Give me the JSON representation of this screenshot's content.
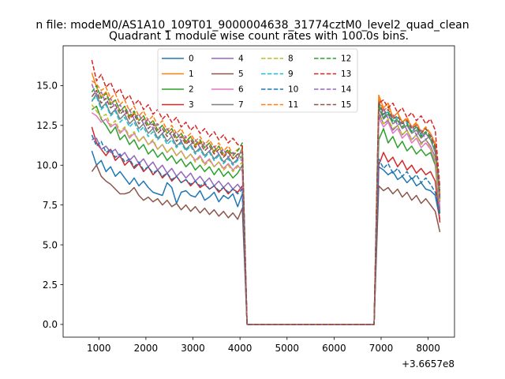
{
  "chart_data": {
    "type": "line",
    "suptitle": "n file: modeM0/AS1A10_109T01_9000004638_31774cztM0_level2_quad_clean",
    "title": "Quadrant 1 module wise count rates with 100.0s bins.",
    "xlabel": "",
    "ylabel": "",
    "offset_label": "+3.6657e8",
    "xlim": [
      240,
      8560
    ],
    "ylim": [
      -0.8,
      17.5
    ],
    "xticks": [
      1000,
      2000,
      3000,
      4000,
      5000,
      6000,
      7000,
      8000
    ],
    "yticks": [
      0.0,
      2.5,
      5.0,
      7.5,
      10.0,
      12.5,
      15.0
    ],
    "ytick_labels": [
      "0.0",
      "2.5",
      "5.0",
      "7.5",
      "10.0",
      "12.5",
      "15.0"
    ],
    "xtick_labels": [
      "1000",
      "2000",
      "3000",
      "4000",
      "5000",
      "6000",
      "7000",
      "8000"
    ],
    "legend": {
      "location": "upper-center",
      "columns": 4
    },
    "segments": {
      "seg1": {
        "x_start": 850,
        "x_end": 4050,
        "step": 100
      },
      "drop_x": [
        4150,
        6850
      ],
      "seg2": {
        "x_start": 6950,
        "x_end": 8250,
        "step": 100
      }
    },
    "series": [
      {
        "name": "0",
        "color": "#1f77b4",
        "dash": false,
        "seg1": [
          10.9,
          10.0,
          10.3,
          9.6,
          9.9,
          9.3,
          9.6,
          9.2,
          8.8,
          9.2,
          8.7,
          9.0,
          8.6,
          8.3,
          8.2,
          8.1,
          8.9,
          8.6,
          7.6,
          8.3,
          8.4,
          8.1,
          8.0,
          8.4,
          7.8,
          8.0,
          8.3,
          7.7,
          8.1,
          7.9,
          8.2,
          7.4,
          8.2
        ],
        "seg2": [
          9.9,
          9.7,
          9.4,
          9.6,
          9.1,
          9.3,
          8.9,
          9.2,
          8.7,
          8.9,
          8.5,
          8.4,
          8.1,
          6.6
        ]
      },
      {
        "name": "1",
        "color": "#ff7f0e",
        "dash": false,
        "seg1": [
          15.8,
          14.9,
          14.3,
          14.6,
          13.9,
          14.1,
          13.4,
          13.7,
          13.0,
          13.3,
          12.8,
          13.1,
          12.5,
          12.8,
          12.2,
          12.5,
          12.0,
          12.3,
          11.7,
          12.0,
          11.4,
          11.8,
          11.2,
          11.5,
          11.1,
          11.4,
          10.8,
          11.2,
          10.6,
          10.9,
          10.4,
          10.7,
          10.4
        ],
        "seg2": [
          14.4,
          13.6,
          13.9,
          13.0,
          13.3,
          12.7,
          12.9,
          12.4,
          12.6,
          12.1,
          12.3,
          12.0,
          11.3,
          7.8
        ]
      },
      {
        "name": "2",
        "color": "#2ca02c",
        "dash": false,
        "seg1": [
          13.5,
          13.7,
          12.9,
          12.5,
          12.0,
          12.4,
          11.6,
          11.9,
          11.3,
          11.6,
          11.0,
          11.3,
          10.7,
          11.0,
          10.5,
          10.8,
          10.3,
          10.6,
          10.1,
          10.4,
          9.9,
          10.2,
          9.7,
          10.0,
          9.6,
          9.9,
          9.4,
          9.8,
          9.3,
          9.6,
          9.2,
          9.5,
          10.0
        ],
        "seg2": [
          11.6,
          12.3,
          11.4,
          11.8,
          11.1,
          11.5,
          10.9,
          11.2,
          10.7,
          11.0,
          10.6,
          10.8,
          10.0,
          7.0
        ]
      },
      {
        "name": "3",
        "color": "#d62728",
        "dash": false,
        "seg1": [
          12.4,
          11.4,
          11.0,
          10.6,
          11.0,
          10.3,
          10.6,
          10.0,
          10.3,
          9.8,
          10.1,
          9.6,
          9.9,
          9.4,
          9.7,
          9.2,
          9.5,
          9.0,
          9.3,
          8.9,
          9.1,
          8.7,
          9.0,
          8.6,
          8.8,
          8.5,
          8.7,
          8.3,
          8.6,
          8.2,
          8.5,
          8.3,
          8.7
        ],
        "seg2": [
          10.0,
          10.8,
          10.2,
          10.5,
          9.9,
          10.3,
          9.7,
          10.0,
          9.5,
          9.8,
          9.4,
          9.6,
          9.0,
          6.4
        ]
      },
      {
        "name": "4",
        "color": "#9467bd",
        "dash": false,
        "seg1": [
          11.6,
          11.7,
          11.0,
          11.2,
          10.8,
          11.0,
          10.5,
          10.8,
          10.3,
          10.6,
          10.1,
          10.4,
          9.9,
          10.2,
          9.7,
          10.0,
          9.5,
          9.8,
          9.3,
          9.6,
          9.2,
          9.5,
          9.0,
          9.3,
          8.9,
          9.2,
          8.7,
          9.0,
          8.6,
          8.9,
          8.5,
          8.8,
          8.4
        ],
        "seg2": [
          13.3,
          12.6,
          12.8,
          12.2,
          12.5,
          11.9,
          12.2,
          11.6,
          11.9,
          11.4,
          11.6,
          11.2,
          10.5,
          7.2
        ]
      },
      {
        "name": "5",
        "color": "#8c564b",
        "dash": false,
        "seg1": [
          9.6,
          10.0,
          9.3,
          9.0,
          8.8,
          8.5,
          8.2,
          8.2,
          8.3,
          8.6,
          8.1,
          7.8,
          8.0,
          7.7,
          7.9,
          7.5,
          7.8,
          7.4,
          7.6,
          7.2,
          7.5,
          7.1,
          7.4,
          7.0,
          7.3,
          6.9,
          7.2,
          6.8,
          7.1,
          6.7,
          7.0,
          6.6,
          7.3
        ],
        "seg2": [
          8.7,
          8.4,
          8.6,
          8.2,
          8.5,
          8.0,
          8.3,
          7.8,
          8.1,
          7.6,
          7.9,
          7.5,
          7.1,
          5.8
        ]
      },
      {
        "name": "6",
        "color": "#e377c2",
        "dash": false,
        "seg1": [
          13.3,
          13.1,
          12.7,
          12.9,
          12.4,
          12.6,
          12.0,
          12.3,
          11.7,
          12.0,
          11.5,
          11.8,
          11.3,
          11.5,
          11.0,
          11.3,
          10.8,
          11.1,
          10.6,
          10.9,
          10.4,
          10.7,
          10.3,
          10.6,
          10.1,
          10.4,
          9.9,
          10.2,
          9.8,
          10.1,
          9.7,
          10.0,
          9.6
        ],
        "seg2": [
          13.0,
          12.4,
          12.7,
          12.0,
          12.3,
          11.7,
          12.0,
          11.4,
          11.7,
          11.1,
          11.4,
          11.0,
          10.2,
          7.4
        ]
      },
      {
        "name": "7",
        "color": "#7f7f7f",
        "dash": false,
        "seg1": [
          14.0,
          14.5,
          13.6,
          13.9,
          13.2,
          13.5,
          12.9,
          13.2,
          12.6,
          12.9,
          12.3,
          12.6,
          12.0,
          12.3,
          11.7,
          12.0,
          11.5,
          11.8,
          11.2,
          11.5,
          11.0,
          11.3,
          10.8,
          11.1,
          10.6,
          10.9,
          10.4,
          10.7,
          10.2,
          10.5,
          10.1,
          10.4,
          11.1
        ],
        "seg2": [
          13.6,
          12.9,
          13.2,
          12.6,
          12.8,
          12.3,
          12.5,
          12.0,
          12.2,
          11.7,
          12.0,
          11.6,
          10.8,
          8.1
        ]
      },
      {
        "name": "8",
        "color": "#bcbd22",
        "dash": true,
        "seg1": [
          13.8,
          13.4,
          13.0,
          13.2,
          12.5,
          12.8,
          12.1,
          12.4,
          11.8,
          12.1,
          11.5,
          11.8,
          11.3,
          11.6,
          11.0,
          11.3,
          10.8,
          11.1,
          10.6,
          10.9,
          10.4,
          10.7,
          10.2,
          10.5,
          10.0,
          10.3,
          9.9,
          10.2,
          9.7,
          10.0,
          9.6,
          9.9,
          10.2
        ],
        "seg2": [
          13.2,
          12.6,
          12.9,
          12.3,
          12.5,
          11.9,
          12.2,
          11.6,
          11.9,
          11.3,
          11.6,
          11.1,
          10.4,
          7.6
        ]
      },
      {
        "name": "9",
        "color": "#17becf",
        "dash": true,
        "seg1": [
          14.1,
          14.3,
          13.5,
          13.8,
          13.1,
          13.4,
          12.7,
          13.0,
          12.4,
          12.7,
          12.1,
          12.4,
          11.8,
          12.1,
          11.6,
          11.9,
          11.3,
          11.6,
          11.1,
          11.4,
          10.9,
          11.2,
          10.7,
          11.0,
          10.5,
          10.8,
          10.3,
          10.6,
          10.1,
          10.4,
          10.0,
          10.3,
          10.6
        ],
        "seg2": [
          13.9,
          13.1,
          13.4,
          12.8,
          13.0,
          12.4,
          12.7,
          12.1,
          12.4,
          11.9,
          12.1,
          11.7,
          11.0,
          7.9
        ]
      },
      {
        "name": "10",
        "color": "#1f77b4",
        "dash": true,
        "seg1": [
          11.9,
          11.2,
          11.5,
          10.8,
          11.0,
          10.5,
          10.7,
          10.2,
          10.4,
          9.9,
          10.2,
          9.7,
          9.9,
          9.5,
          9.7,
          9.3,
          9.5,
          9.1,
          9.3,
          8.9,
          9.1,
          8.8,
          9.0,
          8.7,
          8.9,
          8.5,
          8.7,
          8.4,
          8.6,
          8.3,
          8.5,
          8.2,
          8.5
        ],
        "seg2": [
          10.4,
          9.8,
          10.1,
          9.5,
          9.8,
          9.3,
          9.6,
          9.1,
          9.4,
          8.9,
          9.2,
          8.8,
          8.3,
          6.9
        ]
      },
      {
        "name": "11",
        "color": "#ff7f0e",
        "dash": true,
        "seg1": [
          15.3,
          15.1,
          14.7,
          14.9,
          14.2,
          14.5,
          13.8,
          14.1,
          13.4,
          13.7,
          13.1,
          13.4,
          12.8,
          13.1,
          12.5,
          12.8,
          12.2,
          12.5,
          12.0,
          12.3,
          11.7,
          12.0,
          11.5,
          11.8,
          11.3,
          11.6,
          11.1,
          11.4,
          10.9,
          11.2,
          10.7,
          11.0,
          11.0
        ],
        "seg2": [
          14.2,
          13.4,
          13.7,
          13.0,
          13.3,
          12.7,
          13.0,
          12.4,
          12.7,
          12.1,
          12.4,
          12.0,
          11.4,
          8.2
        ]
      },
      {
        "name": "12",
        "color": "#2ca02c",
        "dash": true,
        "seg1": [
          14.6,
          15.0,
          14.2,
          14.5,
          13.8,
          14.1,
          13.4,
          13.7,
          13.1,
          13.4,
          12.8,
          13.1,
          12.5,
          12.8,
          12.2,
          12.5,
          12.0,
          12.3,
          11.7,
          12.0,
          11.5,
          11.8,
          11.3,
          11.6,
          11.1,
          11.4,
          10.9,
          11.2,
          10.7,
          11.0,
          10.6,
          10.9,
          11.4
        ],
        "seg2": [
          13.7,
          13.0,
          13.3,
          12.7,
          12.9,
          12.4,
          12.6,
          12.1,
          12.4,
          11.8,
          12.1,
          11.7,
          11.0,
          8.4
        ]
      },
      {
        "name": "13",
        "color": "#d62728",
        "dash": true,
        "seg1": [
          16.6,
          15.3,
          15.7,
          14.9,
          15.2,
          14.5,
          14.8,
          14.1,
          14.4,
          13.8,
          14.1,
          13.5,
          13.8,
          13.2,
          13.5,
          12.9,
          13.2,
          12.7,
          13.0,
          12.4,
          12.7,
          12.2,
          12.5,
          12.0,
          12.3,
          11.8,
          12.1,
          11.6,
          11.9,
          11.4,
          11.7,
          11.3,
          11.2
        ],
        "seg2": [
          13.9,
          14.1,
          13.6,
          13.9,
          13.3,
          13.6,
          13.0,
          13.3,
          12.8,
          13.1,
          12.6,
          12.9,
          12.2,
          8.6
        ]
      },
      {
        "name": "14",
        "color": "#9467bd",
        "dash": true,
        "seg1": [
          15.1,
          14.3,
          14.6,
          13.9,
          14.2,
          13.5,
          13.8,
          13.2,
          13.5,
          12.9,
          13.2,
          12.6,
          12.9,
          12.3,
          12.6,
          12.0,
          12.3,
          11.8,
          12.1,
          11.5,
          11.8,
          11.3,
          11.6,
          11.1,
          11.4,
          10.9,
          11.2,
          10.7,
          11.0,
          10.5,
          10.8,
          10.4,
          10.3
        ],
        "seg2": [
          12.8,
          13.6,
          12.9,
          13.2,
          12.5,
          12.8,
          12.2,
          12.5,
          11.9,
          12.2,
          11.6,
          11.9,
          11.1,
          7.7
        ]
      },
      {
        "name": "15",
        "color": "#8c564b",
        "dash": true,
        "seg1": [
          14.3,
          14.7,
          13.9,
          14.2,
          13.6,
          13.8,
          13.2,
          13.5,
          12.9,
          13.2,
          12.6,
          12.9,
          12.3,
          12.6,
          12.0,
          12.3,
          11.8,
          12.1,
          11.5,
          11.8,
          11.3,
          11.6,
          11.1,
          11.4,
          10.9,
          11.2,
          10.7,
          11.0,
          10.5,
          10.8,
          10.4,
          10.7,
          10.8
        ],
        "seg2": [
          14.0,
          13.2,
          13.5,
          12.9,
          13.1,
          12.6,
          12.8,
          12.3,
          12.5,
          12.0,
          12.3,
          11.8,
          11.2,
          8.0
        ]
      }
    ]
  }
}
